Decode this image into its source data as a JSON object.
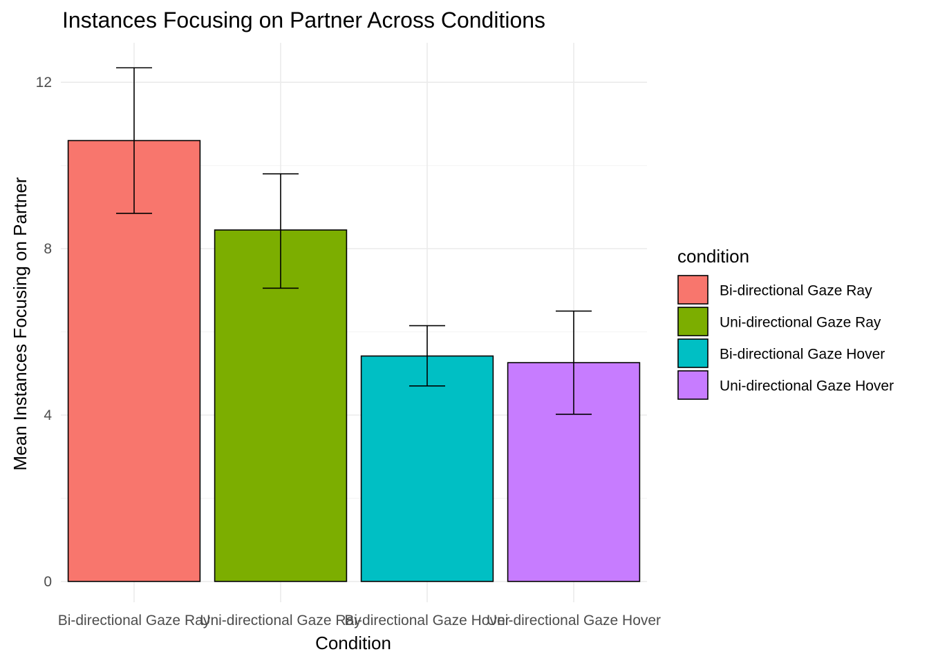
{
  "chart_data": {
    "type": "bar",
    "title": "Instances Focusing on Partner Across Conditions",
    "xlabel": "Condition",
    "ylabel": "Mean Instances Focusing on Partner",
    "categories": [
      "Bi-directional Gaze Ray",
      "Uni-directional Gaze Ray",
      "Bi-directional Gaze Hover",
      "Uni-directional Gaze Hover"
    ],
    "values": [
      10.6,
      8.45,
      5.42,
      5.26
    ],
    "error_lower": [
      8.85,
      7.05,
      4.7,
      4.02
    ],
    "error_upper": [
      12.35,
      9.8,
      6.15,
      6.5
    ],
    "colors": [
      "#F8766D",
      "#7CAE00",
      "#00BFC4",
      "#C77CFF"
    ],
    "ylim": [
      -0.5,
      12.95
    ],
    "yticks": [
      0,
      4,
      8,
      12
    ],
    "grid": true,
    "legend": {
      "title": "condition",
      "position": "right",
      "entries": [
        "Bi-directional Gaze Ray",
        "Uni-directional Gaze Ray",
        "Bi-directional Gaze Hover",
        "Uni-directional Gaze Hover"
      ]
    }
  }
}
